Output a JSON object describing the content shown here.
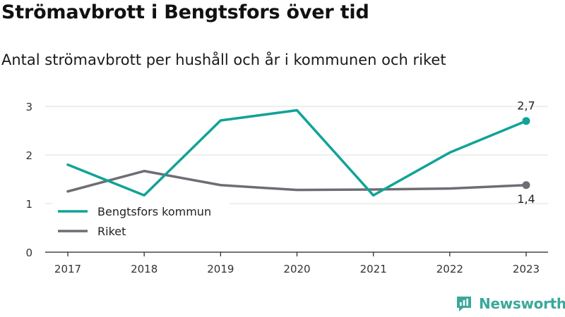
{
  "header": {
    "title": "Strömavbrott i Bengtsfors över tid",
    "subtitle": "Antal strömavbrott per hushåll och år i kommunen och riket"
  },
  "brand": {
    "name": "Newsworthy",
    "icon": "newsworthy-logo-icon",
    "color": "#3aa89a"
  },
  "chart_data": {
    "type": "line",
    "title": "Strömavbrott i Bengtsfors över tid",
    "subtitle": "Antal strömavbrott per hushåll och år i kommunen och riket",
    "xlabel": "",
    "ylabel": "",
    "categories": [
      "2017",
      "2018",
      "2019",
      "2020",
      "2021",
      "2022",
      "2023"
    ],
    "ylim": [
      0,
      3
    ],
    "yticks": [
      0,
      1,
      2,
      3
    ],
    "grid": true,
    "legend_position": "bottom-left",
    "series": [
      {
        "name": "Bengtsfors kommun",
        "color": "#10a397",
        "values": [
          1.8,
          1.17,
          2.71,
          2.92,
          1.17,
          2.05,
          2.7
        ],
        "end_label": "2,7"
      },
      {
        "name": "Riket",
        "color": "#6e6d74",
        "values": [
          1.25,
          1.67,
          1.38,
          1.28,
          1.29,
          1.31,
          1.38
        ],
        "end_label": "1,4"
      }
    ]
  }
}
